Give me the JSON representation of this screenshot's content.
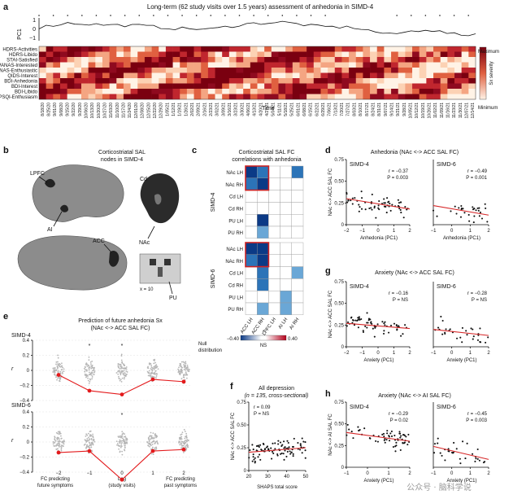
{
  "panel_a": {
    "label": "a",
    "title": "Long-term (62 study visits over 1.5 years) assessment of anhedonia in SIMD-4",
    "pc_axis_label": "PC1",
    "pc_ticks": [
      "1",
      "0",
      "−1"
    ],
    "rows": [
      "HDRS-Activities",
      "HDRS-Libido",
      "STAI-Satisfied",
      "PANAS-Interested",
      "PANAS-Enthusiastic",
      "QIDS-Interest",
      "BDI-Anhedonia",
      "BDI-Interest",
      "BDI-Libido",
      "PSQI-Enthusiasm"
    ],
    "dates": [
      "8/18/20",
      "8/25/20",
      "9/01/20",
      "9/08/20",
      "9/15/20",
      "9/22/20",
      "9/29/20",
      "10/06/20",
      "10/13/20",
      "10/20/20",
      "10/27/20",
      "11/03/20",
      "11/10/20",
      "11/17/20",
      "11/24/20",
      "12/01/20",
      "12/08/20",
      "12/15/20",
      "12/22/20",
      "12/29/20",
      "1/05/21",
      "1/12/21",
      "1/19/21",
      "1/26/21",
      "2/02/21",
      "2/09/21",
      "2/16/21",
      "2/23/21",
      "3/02/21",
      "3/09/21",
      "3/16/21",
      "3/23/21",
      "3/30/21",
      "4/06/21",
      "4/13/21",
      "4/20/21",
      "4/27/21",
      "5/04/21",
      "5/11/21",
      "5/18/21",
      "5/25/21",
      "6/01/21",
      "6/08/21",
      "6/15/21",
      "6/22/21",
      "6/29/21",
      "7/06/21",
      "7/13/21",
      "7/20/21",
      "7/27/21",
      "8/03/21",
      "8/10/21",
      "8/17/21",
      "8/24/21",
      "8/31/21",
      "9/07/21",
      "9/14/21",
      "9/21/21",
      "9/28/21",
      "10/05/21",
      "10/12/21",
      "10/19/21",
      "10/26/21",
      "11/02/21",
      "11/09/21",
      "11/16/21",
      "11/23/21",
      "11/30/21",
      "12/07/21",
      "12/14/21"
    ],
    "xlabel": "Time",
    "colorbar_max": "Maximum",
    "colorbar_min": "Minimum",
    "colorbar_label": "Sx severity"
  },
  "panel_b": {
    "label": "b",
    "title_line1": "Corticostriatal SAL",
    "title_line2": "nodes in SIMD-4",
    "regions": {
      "lpfc": "LPFC",
      "ai": "AI",
      "acc": "ACC",
      "cd": "Cd",
      "nac": "NAc",
      "pu": "PU"
    },
    "slice_label": "x = 10"
  },
  "panel_c": {
    "label": "c",
    "title_line1": "Corticostriatal SAL FC",
    "title_line2": "correlations with anhedonia",
    "row_labels": [
      "NAc LH",
      "NAc RH",
      "Cd LH",
      "Cd RH",
      "PU LH",
      "PU RH"
    ],
    "col_labels": [
      "ACC LH",
      "ACC RH",
      "LPFC LH",
      "AI LH",
      "AI RH"
    ],
    "group_top": "SIMD-4",
    "group_bottom": "SIMD-6",
    "cbar_min": "−0.40",
    "cbar_max": "0.40",
    "cbar_label": "r",
    "cbar_ns": "NS",
    "colors": {
      "neg_strong": "#0b3a86",
      "neg_mid": "#2c74b8",
      "neg_light": "#6aa7d6",
      "highlight": "#cc2222"
    }
  },
  "panel_d": {
    "label": "d",
    "title": "Anhedonia (NAc <-> ACC SAL FC)",
    "ylabel": "NAc <-> ACC SAL FC",
    "xlabel": "Anhedonia (PC1)",
    "left": {
      "name": "SIMD-4",
      "r": "r = −0.37",
      "p": "P = 0.003",
      "yticks": [
        "0.75",
        "0.50",
        "0.25",
        "0"
      ],
      "xticks": [
        "−2",
        "−1",
        "0",
        "1",
        "2"
      ]
    },
    "right": {
      "name": "SIMD-6",
      "r": "r = −0.49",
      "p": "P = 0.001",
      "xticks": [
        "−1",
        "0",
        "1",
        "2"
      ]
    }
  },
  "panel_g": {
    "label": "g",
    "title": "Anxiety (NAc <-> ACC SAL FC)",
    "ylabel": "NAc <-> ACC SAL FC",
    "xlabel": "Anxiety (PC1)",
    "left": {
      "name": "SIMD-4",
      "r": "r = −0.16",
      "p": "P = NS",
      "yticks": [
        "0.75",
        "0.50",
        "0.25",
        "0"
      ],
      "xticks": [
        "−2",
        "−1",
        "0",
        "1",
        "2"
      ]
    },
    "right": {
      "name": "SIMD-6",
      "r": "r = −0.28",
      "p": "P = NS",
      "xticks": [
        "−1",
        "0",
        "1",
        "2"
      ]
    }
  },
  "panel_h": {
    "label": "h",
    "title": "Anxiety (NAc <-> AI SAL FC)",
    "ylabel": "NAc <-> AI SAL FC",
    "xlabel": "Anxiety (PC1)",
    "left": {
      "name": "SIMD-4",
      "r": "r = −0.29",
      "p": "P = 0.02",
      "yticks": [
        "0.75",
        "0.50",
        "0.25",
        "0"
      ],
      "xticks": [
        "−1",
        "0",
        "1",
        "2"
      ]
    },
    "right": {
      "name": "SIMD-6",
      "r": "r = −0.45",
      "p": "P = 0.003",
      "xticks": [
        "−1",
        "0",
        "1",
        "2"
      ]
    }
  },
  "panel_e": {
    "label": "e",
    "title_line1": "Prediction of future anhedonia Sx",
    "title_line2": "(NAc <-> ACC SAL FC)",
    "null_line1": "Null",
    "null_line2": "distribution",
    "top": {
      "name": "SIMD-4",
      "yticks": [
        "0.4",
        "0.2",
        "0",
        "−0.2",
        "−0.4"
      ]
    },
    "bottom": {
      "name": "SIMD-6",
      "yticks": [
        "0.4",
        "0.2",
        "0",
        "−0.2",
        "−0.4"
      ]
    },
    "ylabel": "r",
    "xticks": [
      "−2",
      "−1",
      "0",
      "1",
      "2"
    ],
    "xlab_left_1": "FC predicting",
    "xlab_left_2": "future symptoms",
    "xlab_mid_1": "Lag",
    "xlab_mid_2": "(study visits)",
    "xlab_right_1": "FC predicting",
    "xlab_right_2": "past symptoms",
    "star": "*"
  },
  "panel_f": {
    "label": "f",
    "title_line1": "All depression",
    "title_line2": "(n = 135, cross-sectional)",
    "r": "r = 0.09",
    "p": "P = NS",
    "ylabel": "NAc <-> ACC SAL FC",
    "xlabel": "SHAPS total score",
    "yticks": [
      "0.75",
      "0.50",
      "0.25",
      "0"
    ],
    "xticks": [
      "20",
      "30",
      "40",
      "50"
    ]
  },
  "watermark": "公众号 · 脑科学说",
  "chart_data": [
    {
      "type": "line",
      "title": "PC1 over time (SIMD-4)",
      "ylabel": "PC1",
      "ylim": [
        -1,
        1
      ],
      "x": [
        1,
        5,
        10,
        15,
        20,
        25,
        30,
        35,
        40,
        45,
        50,
        55,
        60,
        62
      ],
      "values": [
        0.3,
        0.8,
        0.6,
        0.5,
        0.2,
        0.1,
        0.7,
        0.9,
        0.4,
        0.3,
        -0.5,
        0.1,
        -0.6,
        -0.4
      ]
    },
    {
      "type": "line",
      "title": "Prediction of future anhedonia Sx (SIMD-4)",
      "xlabel": "Lag (study visits)",
      "ylabel": "r",
      "categories": [
        "-2",
        "-1",
        "0",
        "1",
        "2"
      ],
      "values": [
        -0.06,
        -0.27,
        -0.32,
        -0.12,
        -0.15
      ],
      "ylim": [
        -0.4,
        0.4
      ]
    },
    {
      "type": "line",
      "title": "Prediction of future anhedonia Sx (SIMD-6)",
      "xlabel": "Lag (study visits)",
      "ylabel": "r",
      "categories": [
        "-2",
        "-1",
        "0",
        "1",
        "2"
      ],
      "values": [
        -0.14,
        -0.12,
        -0.5,
        -0.12,
        -0.1
      ],
      "ylim": [
        -0.4,
        0.4
      ]
    },
    {
      "type": "scatter",
      "title": "Anhedonia (NAc <-> ACC SAL FC) SIMD-4",
      "xlabel": "Anhedonia (PC1)",
      "ylabel": "NAc <-> ACC SAL FC",
      "ylim": [
        0,
        0.75
      ],
      "fit": {
        "x": [
          -2,
          2
        ],
        "y": [
          0.3,
          0.18
        ]
      }
    },
    {
      "type": "scatter",
      "title": "Anhedonia (NAc <-> ACC SAL FC) SIMD-6",
      "xlabel": "Anhedonia (PC1)",
      "ylabel": "NAc <-> ACC SAL FC",
      "ylim": [
        0,
        0.75
      ],
      "fit": {
        "x": [
          -1,
          2
        ],
        "y": [
          0.22,
          0.11
        ]
      }
    },
    {
      "type": "scatter",
      "title": "Anxiety (NAc <-> ACC SAL FC) SIMD-4",
      "xlabel": "Anxiety (PC1)",
      "ylim": [
        0,
        0.75
      ],
      "fit": {
        "x": [
          -2,
          2
        ],
        "y": [
          0.27,
          0.21
        ]
      }
    },
    {
      "type": "scatter",
      "title": "Anxiety (NAc <-> ACC SAL FC) SIMD-6",
      "xlabel": "Anxiety (PC1)",
      "ylim": [
        0,
        0.75
      ],
      "fit": {
        "x": [
          -1,
          2
        ],
        "y": [
          0.2,
          0.13
        ]
      }
    },
    {
      "type": "scatter",
      "title": "Anxiety (NAc <-> AI SAL FC) SIMD-4",
      "xlabel": "Anxiety (PC1)",
      "ylim": [
        0,
        0.75
      ],
      "fit": {
        "x": [
          -1,
          2
        ],
        "y": [
          0.4,
          0.3
        ]
      }
    },
    {
      "type": "scatter",
      "title": "Anxiety (NAc <-> AI SAL FC) SIMD-6",
      "xlabel": "Anxiety (PC1)",
      "ylim": [
        0,
        0.75
      ],
      "fit": {
        "x": [
          -1,
          2
        ],
        "y": [
          0.24,
          0.09
        ]
      }
    },
    {
      "type": "scatter",
      "title": "All depression (n = 135, cross-sectional)",
      "xlabel": "SHAPS total score",
      "ylabel": "NAc <-> ACC SAL FC",
      "ylim": [
        0,
        0.75
      ],
      "fit": {
        "x": [
          20,
          50
        ],
        "y": [
          0.2,
          0.25
        ]
      }
    }
  ]
}
